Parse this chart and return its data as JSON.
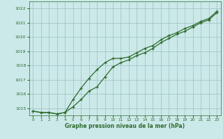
{
  "x": [
    0,
    1,
    2,
    3,
    4,
    5,
    6,
    7,
    8,
    9,
    10,
    11,
    12,
    13,
    14,
    15,
    16,
    17,
    18,
    19,
    20,
    21,
    22,
    23
  ],
  "line1": [
    1014.8,
    1014.7,
    1014.7,
    1014.6,
    1014.7,
    1015.6,
    1016.4,
    1017.1,
    1017.7,
    1018.2,
    1018.5,
    1018.5,
    1018.6,
    1018.9,
    1019.2,
    1019.4,
    1019.8,
    1020.1,
    1020.3,
    1020.6,
    1020.8,
    1021.1,
    1021.3,
    1021.8
  ],
  "line2": [
    1014.8,
    1014.7,
    1014.7,
    1014.6,
    1014.7,
    1015.1,
    1015.6,
    1016.2,
    1016.5,
    1017.2,
    1017.9,
    1018.2,
    1018.4,
    1018.7,
    1018.9,
    1019.2,
    1019.6,
    1019.9,
    1020.2,
    1020.4,
    1020.7,
    1021.0,
    1021.2,
    1021.7
  ],
  "bg_color": "#cce9e9",
  "grid_color": "#9bbfbf",
  "line_color": "#2d6b2d",
  "xlabel": "Graphe pression niveau de la mer (hPa)",
  "ylim": [
    1014.5,
    1022.5
  ],
  "xlim": [
    -0.5,
    23.5
  ],
  "yticks": [
    1015,
    1016,
    1017,
    1018,
    1019,
    1020,
    1021,
    1022
  ],
  "xticks": [
    0,
    1,
    2,
    3,
    4,
    5,
    6,
    7,
    8,
    9,
    10,
    11,
    12,
    13,
    14,
    15,
    16,
    17,
    18,
    19,
    20,
    21,
    22,
    23
  ]
}
